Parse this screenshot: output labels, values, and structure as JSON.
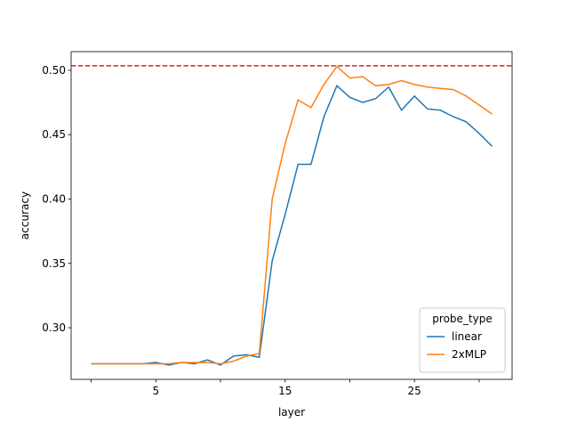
{
  "chart_data": {
    "type": "line",
    "x_label": "layer",
    "y_label": "accuracy",
    "x": [
      0,
      1,
      2,
      3,
      4,
      5,
      6,
      7,
      8,
      9,
      10,
      11,
      12,
      13,
      14,
      15,
      16,
      17,
      18,
      19,
      20,
      21,
      22,
      23,
      24,
      25,
      26,
      27,
      28,
      29,
      30,
      31
    ],
    "series": [
      {
        "name": "linear",
        "color": "#1f77b4",
        "values": [
          0.272,
          0.272,
          0.272,
          0.272,
          0.272,
          0.273,
          0.271,
          0.273,
          0.272,
          0.275,
          0.271,
          0.278,
          0.279,
          0.277,
          0.352,
          0.388,
          0.427,
          0.427,
          0.464,
          0.488,
          0.479,
          0.475,
          0.478,
          0.487,
          0.469,
          0.48,
          0.47,
          0.469,
          0.464,
          0.46,
          0.451,
          0.441
        ]
      },
      {
        "name": "2xMLP",
        "color": "#ff7f0e",
        "values": [
          0.272,
          0.272,
          0.272,
          0.272,
          0.272,
          0.272,
          0.272,
          0.273,
          0.273,
          0.273,
          0.272,
          0.274,
          0.278,
          0.28,
          0.4,
          0.443,
          0.477,
          0.471,
          0.489,
          0.503,
          0.494,
          0.495,
          0.488,
          0.489,
          0.492,
          0.489,
          0.487,
          0.486,
          0.485,
          0.48,
          0.473,
          0.466
        ]
      }
    ],
    "reference_line": {
      "value": 0.5035,
      "color": "#d62728",
      "dash": true
    },
    "xlim": [
      -1.55,
      32.55
    ],
    "ylim": [
      0.2599,
      0.5145
    ],
    "xticks": [
      {
        "value": 0,
        "label": null
      },
      5,
      {
        "value": 10,
        "label": null
      },
      15,
      {
        "value": 20,
        "label": null
      },
      25,
      {
        "value": 30,
        "label": null
      }
    ],
    "yticks": [
      {
        "value": 0.3,
        "label": "0.30"
      },
      0.35,
      {
        "value": 0.4,
        "label": "0.40"
      },
      0.45,
      {
        "value": 0.5,
        "label": "0.50"
      }
    ],
    "legend": {
      "title": "probe_type",
      "position": "lower right"
    },
    "grid": false
  }
}
